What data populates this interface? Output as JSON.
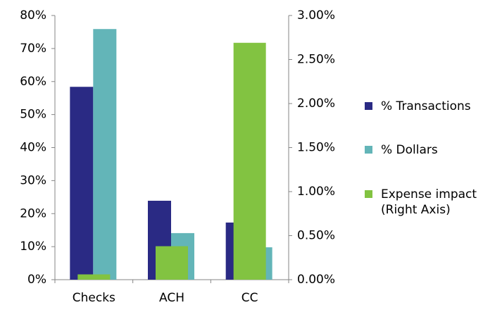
{
  "chart_data": {
    "type": "bar",
    "categories": [
      "Checks",
      "ACH",
      "CC"
    ],
    "series": [
      {
        "name": "% Transactions",
        "color": "#2a2a84",
        "values": [
          58.4,
          23.9,
          17.3
        ]
      },
      {
        "name": "% Dollars",
        "color": "#63b5b8",
        "values": [
          75.9,
          14.1,
          9.8
        ]
      },
      {
        "name": "Expense impact (Right Axis)",
        "color": "#82c341",
        "values": [
          0.06,
          0.38,
          2.69
        ],
        "axis": "y2"
      }
    ],
    "ylim": [
      0,
      80
    ],
    "yticks": [
      {
        "value": 0,
        "label": "0%"
      },
      {
        "value": 10,
        "label": "10%"
      },
      {
        "value": 20,
        "label": "20%"
      },
      {
        "value": 30,
        "label": "30%"
      },
      {
        "value": 40,
        "label": "40%"
      },
      {
        "value": 50,
        "label": "50%"
      },
      {
        "value": 60,
        "label": "60%"
      },
      {
        "value": 70,
        "label": "70%"
      },
      {
        "value": 80,
        "label": "80%"
      }
    ],
    "y2lim": [
      0,
      3
    ],
    "y2ticks": [
      {
        "value": 0,
        "label": "0.00%"
      },
      {
        "value": 0.5,
        "label": "0.50%"
      },
      {
        "value": 1,
        "label": "1.00%"
      },
      {
        "value": 1.5,
        "label": "1.50%"
      },
      {
        "value": 2,
        "label": "2.00%"
      },
      {
        "value": 2.5,
        "label": "2.50%"
      },
      {
        "value": 3,
        "label": "3.00%"
      }
    ],
    "legend": "right"
  }
}
